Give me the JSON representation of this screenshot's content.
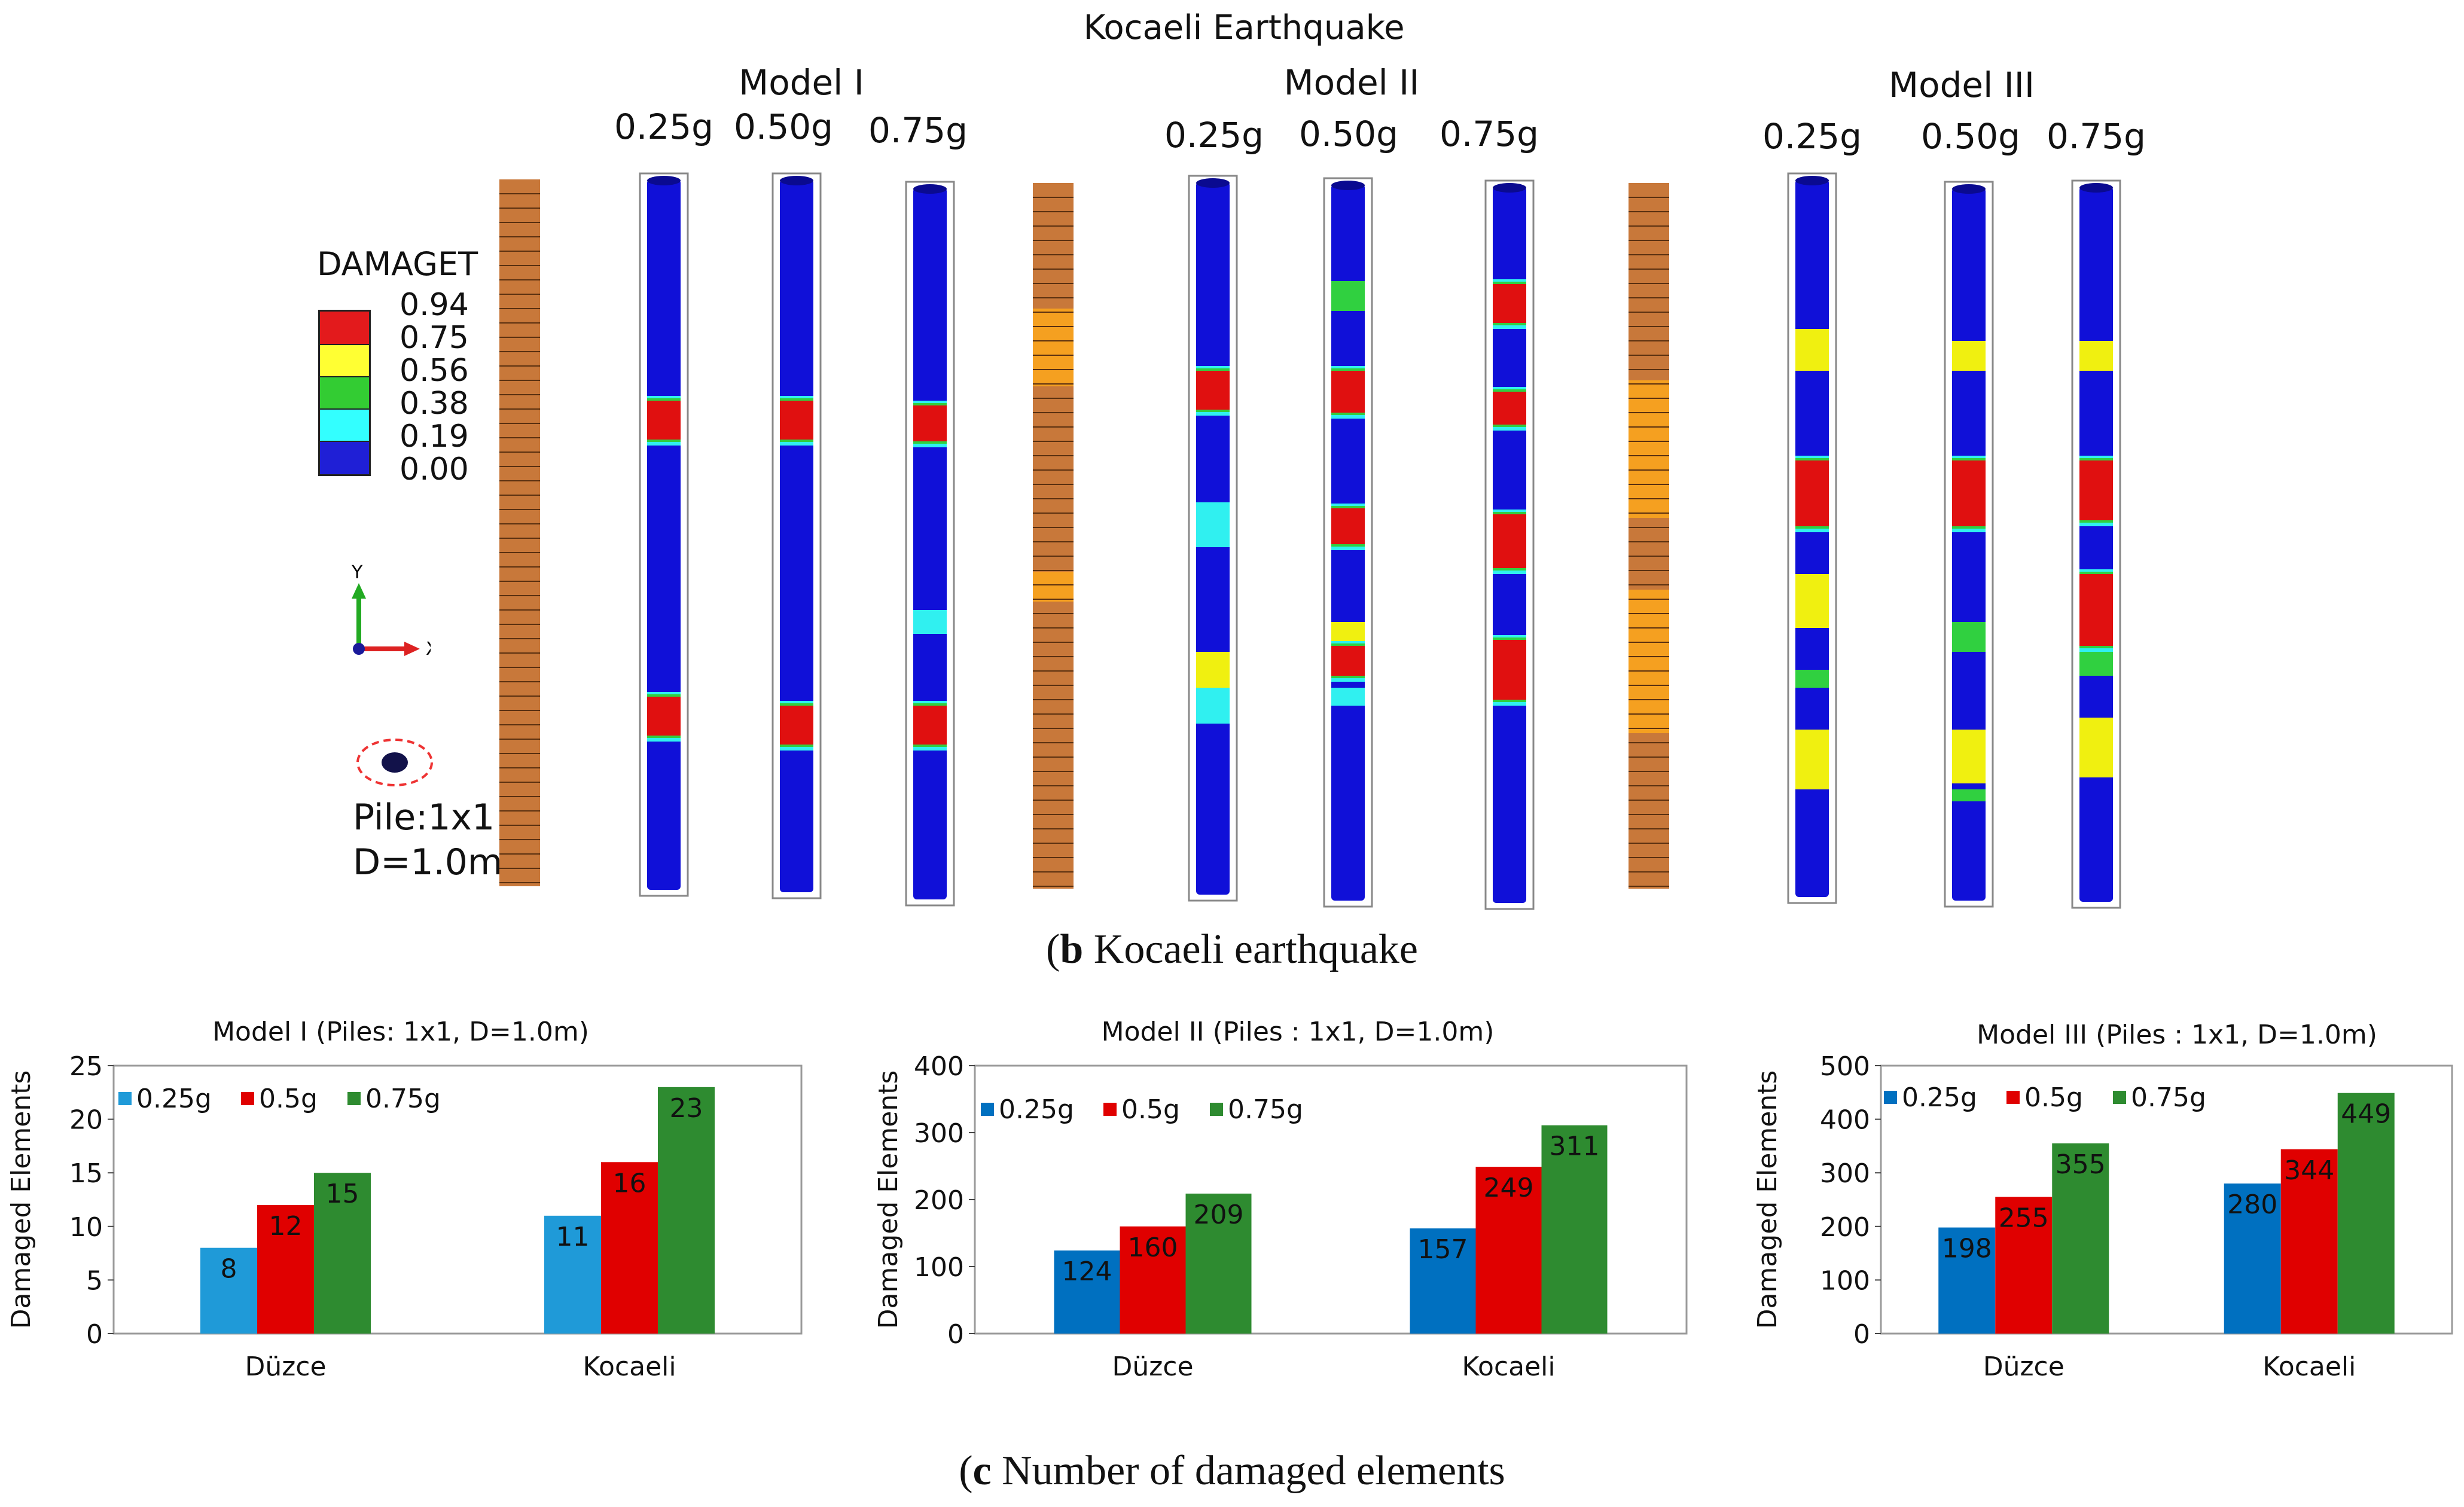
{
  "top": {
    "title": "Kocaeli Earthquake",
    "models": [
      {
        "name": "Model I",
        "levels": [
          "0.25g",
          "0.50g",
          "0.75g"
        ]
      },
      {
        "name": "Model II",
        "levels": [
          "0.25g",
          "0.50g",
          "0.75g"
        ]
      },
      {
        "name": "Model III",
        "levels": [
          "0.25g",
          "0.50g",
          "0.75g"
        ]
      }
    ]
  },
  "legend": {
    "title": "DAMAGET",
    "values": [
      "0.94",
      "0.75",
      "0.56",
      "0.38",
      "0.19",
      "0.00"
    ],
    "colors": [
      "#e31a1c",
      "#ffff33",
      "#33cc33",
      "#33ffff",
      "#1f1fd6"
    ]
  },
  "axes": {
    "y": "Y",
    "x": "X"
  },
  "pile": {
    "label": "Pile:1x1",
    "diameter": "D=1.0m"
  },
  "colors": {
    "pile_blue": "#1010d8",
    "soil_brown": "#c8783a",
    "soil_orange": "#f5a020",
    "damage_red": "#e01010",
    "damage_yellow": "#f0f010",
    "damage_green": "#30d040",
    "damage_cyan": "#30f0f0"
  },
  "captions": {
    "b_letter": "b",
    "b_text": " Kocaeli earthquake",
    "c_letter": "c",
    "c_text": " Number of damaged elements"
  },
  "chart_data": [
    {
      "type": "bar",
      "title": "Model I (Piles: 1x1, D=1.0m)",
      "ylabel": "Damaged Elements",
      "xlabel": "",
      "categories": [
        "Düzce",
        "Kocaeli"
      ],
      "ylim": [
        0,
        25
      ],
      "yticks": [
        0,
        5,
        10,
        15,
        20,
        25
      ],
      "series": [
        {
          "name": "0.25g",
          "color": "#1f9ad8",
          "values": [
            8,
            11
          ]
        },
        {
          "name": "0.5g",
          "color": "#e00000",
          "values": [
            12,
            16
          ]
        },
        {
          "name": "0.75g",
          "color": "#2e8b30",
          "values": [
            15,
            23
          ]
        }
      ]
    },
    {
      "type": "bar",
      "title": "Model II (Piles : 1x1, D=1.0m)",
      "ylabel": "Damaged Elements",
      "xlabel": "",
      "categories": [
        "Düzce",
        "Kocaeli"
      ],
      "ylim": [
        0,
        400
      ],
      "yticks": [
        0,
        100,
        200,
        300,
        400
      ],
      "series": [
        {
          "name": "0.25g",
          "color": "#0070c0",
          "values": [
            124,
            157
          ]
        },
        {
          "name": "0.5g",
          "color": "#e00000",
          "values": [
            160,
            249
          ]
        },
        {
          "name": "0.75g",
          "color": "#2e8b30",
          "values": [
            209,
            311
          ]
        }
      ]
    },
    {
      "type": "bar",
      "title": "Model III (Piles : 1x1, D=1.0m)",
      "ylabel": "Damaged Elements",
      "xlabel": "",
      "categories": [
        "Düzce",
        "Kocaeli"
      ],
      "ylim": [
        0,
        500
      ],
      "yticks": [
        0,
        100,
        200,
        300,
        400,
        500
      ],
      "series": [
        {
          "name": "0.25g",
          "color": "#0070c0",
          "values": [
            198,
            280
          ]
        },
        {
          "name": "0.5g",
          "color": "#e00000",
          "values": [
            255,
            344
          ]
        },
        {
          "name": "0.75g",
          "color": "#2e8b30",
          "values": [
            355,
            449
          ]
        }
      ]
    }
  ]
}
